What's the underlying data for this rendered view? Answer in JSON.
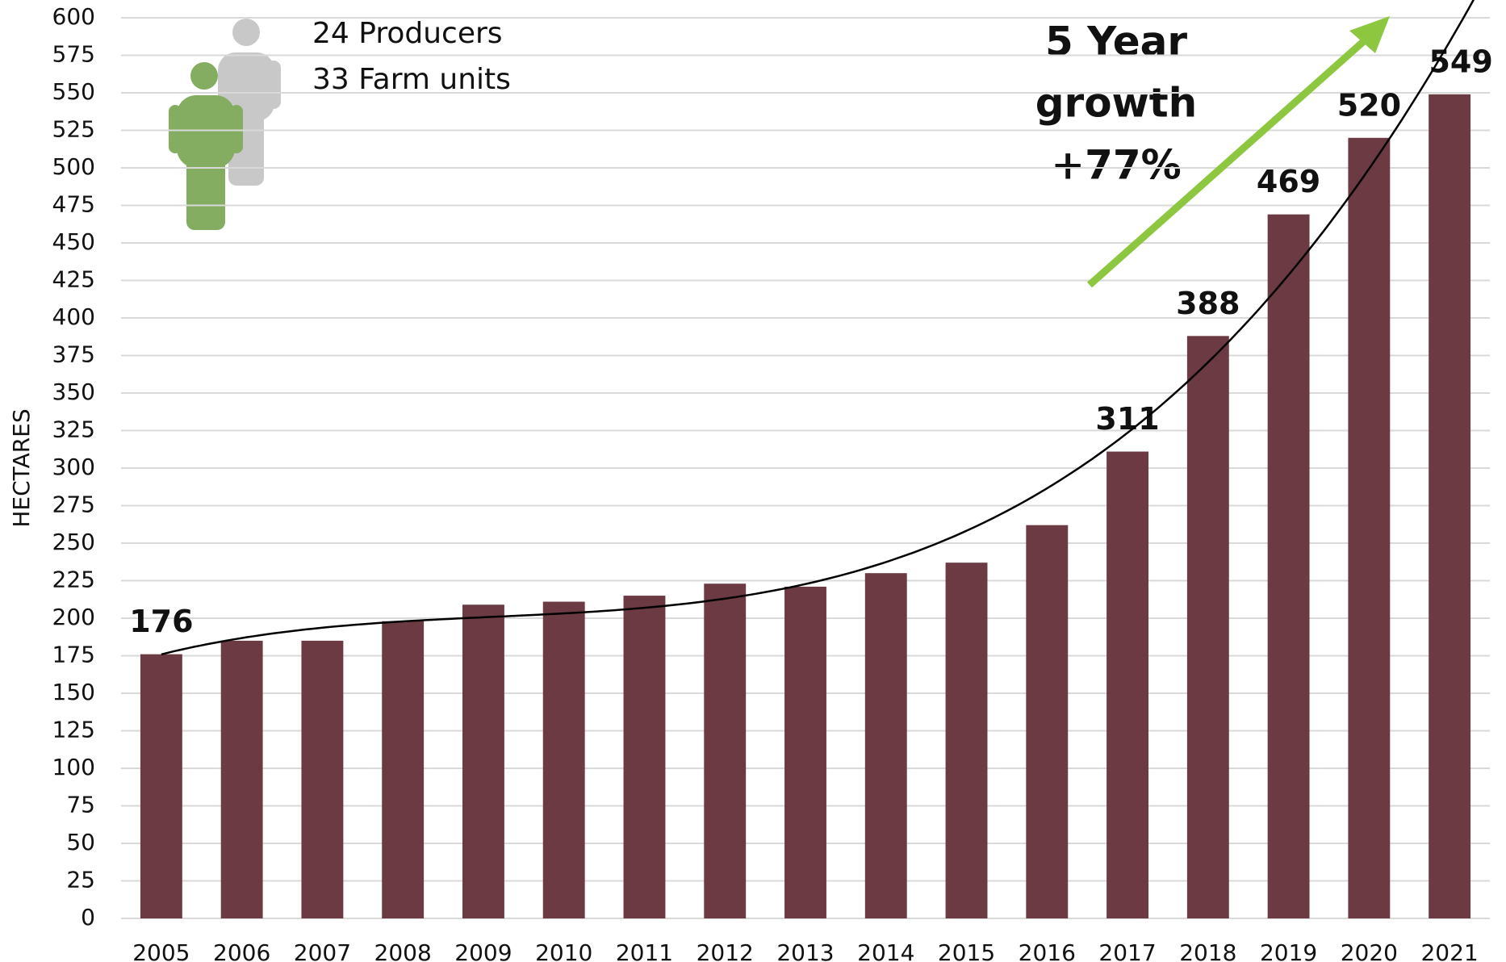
{
  "chart_data": {
    "type": "bar",
    "y_label": "HECTARES",
    "annotations": [
      "24 Producers",
      "33 Farm units",
      "5 Year",
      "growth",
      "+77%"
    ],
    "categories": [
      "2005",
      "2006",
      "2007",
      "2008",
      "2009",
      "2010",
      "2011",
      "2012",
      "2013",
      "2014",
      "2015",
      "2016",
      "2017",
      "2018",
      "2019",
      "2020",
      "2021"
    ],
    "values": [
      176,
      185,
      185,
      198,
      209,
      211,
      215,
      223,
      221,
      230,
      237,
      262,
      311,
      388,
      469,
      520,
      549
    ],
    "value_labels": [
      176,
      null,
      null,
      null,
      null,
      null,
      null,
      null,
      null,
      null,
      null,
      null,
      311,
      388,
      469,
      520,
      549
    ],
    "color": "#6b3a42",
    "ylim": [
      0,
      600
    ],
    "yticks": [
      0,
      25,
      50,
      75,
      100,
      125,
      150,
      175,
      200,
      225,
      250,
      275,
      300,
      325,
      350,
      375,
      400,
      425,
      450,
      475,
      500,
      525,
      550,
      575,
      600
    ],
    "grid": true,
    "trendline": "polynomial"
  }
}
